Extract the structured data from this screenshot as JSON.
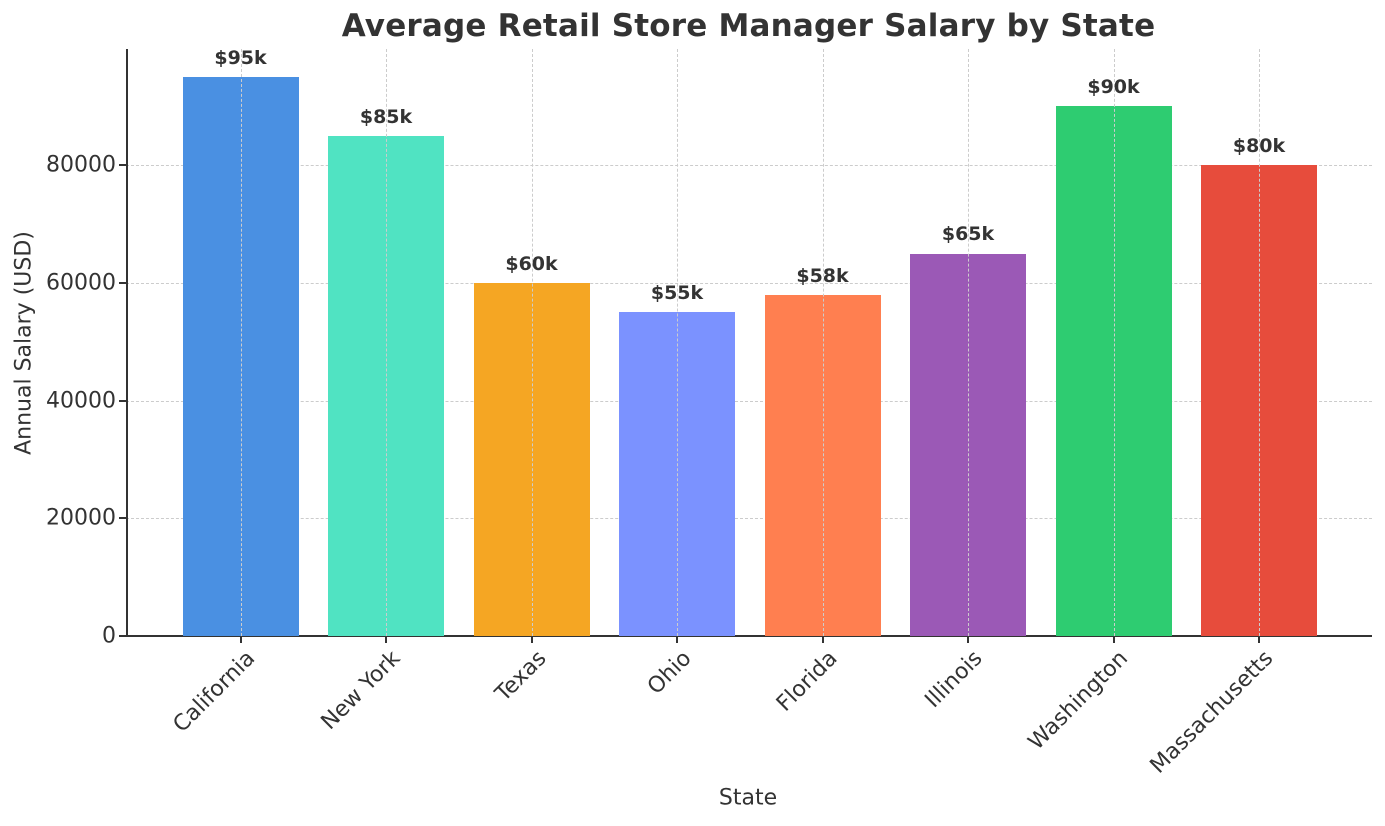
{
  "chart_data": {
    "type": "bar",
    "title": "Average Retail Store Manager Salary by State",
    "xlabel": "State",
    "ylabel": "Annual Salary (USD)",
    "categories": [
      "California",
      "New York",
      "Texas",
      "Ohio",
      "Florida",
      "Illinois",
      "Washington",
      "Massachusetts"
    ],
    "values": [
      95000,
      85000,
      60000,
      55000,
      58000,
      65000,
      90000,
      80000
    ],
    "data_labels": [
      "$95k",
      "$85k",
      "$60k",
      "$55k",
      "$58k",
      "$65k",
      "$90k",
      "$80k"
    ],
    "colors": [
      "#4a90e2",
      "#50e3c2",
      "#f5a623",
      "#7b92ff",
      "#ff7f50",
      "#9b59b6",
      "#2ecc71",
      "#e74c3c"
    ],
    "ylim": [
      0,
      99750
    ],
    "yticks": [
      0,
      20000,
      40000,
      60000,
      80000
    ],
    "ytick_labels": [
      "0",
      "20000",
      "40000",
      "60000",
      "80000"
    ],
    "grid": true,
    "grid_style": "dashed",
    "legend": null
  }
}
